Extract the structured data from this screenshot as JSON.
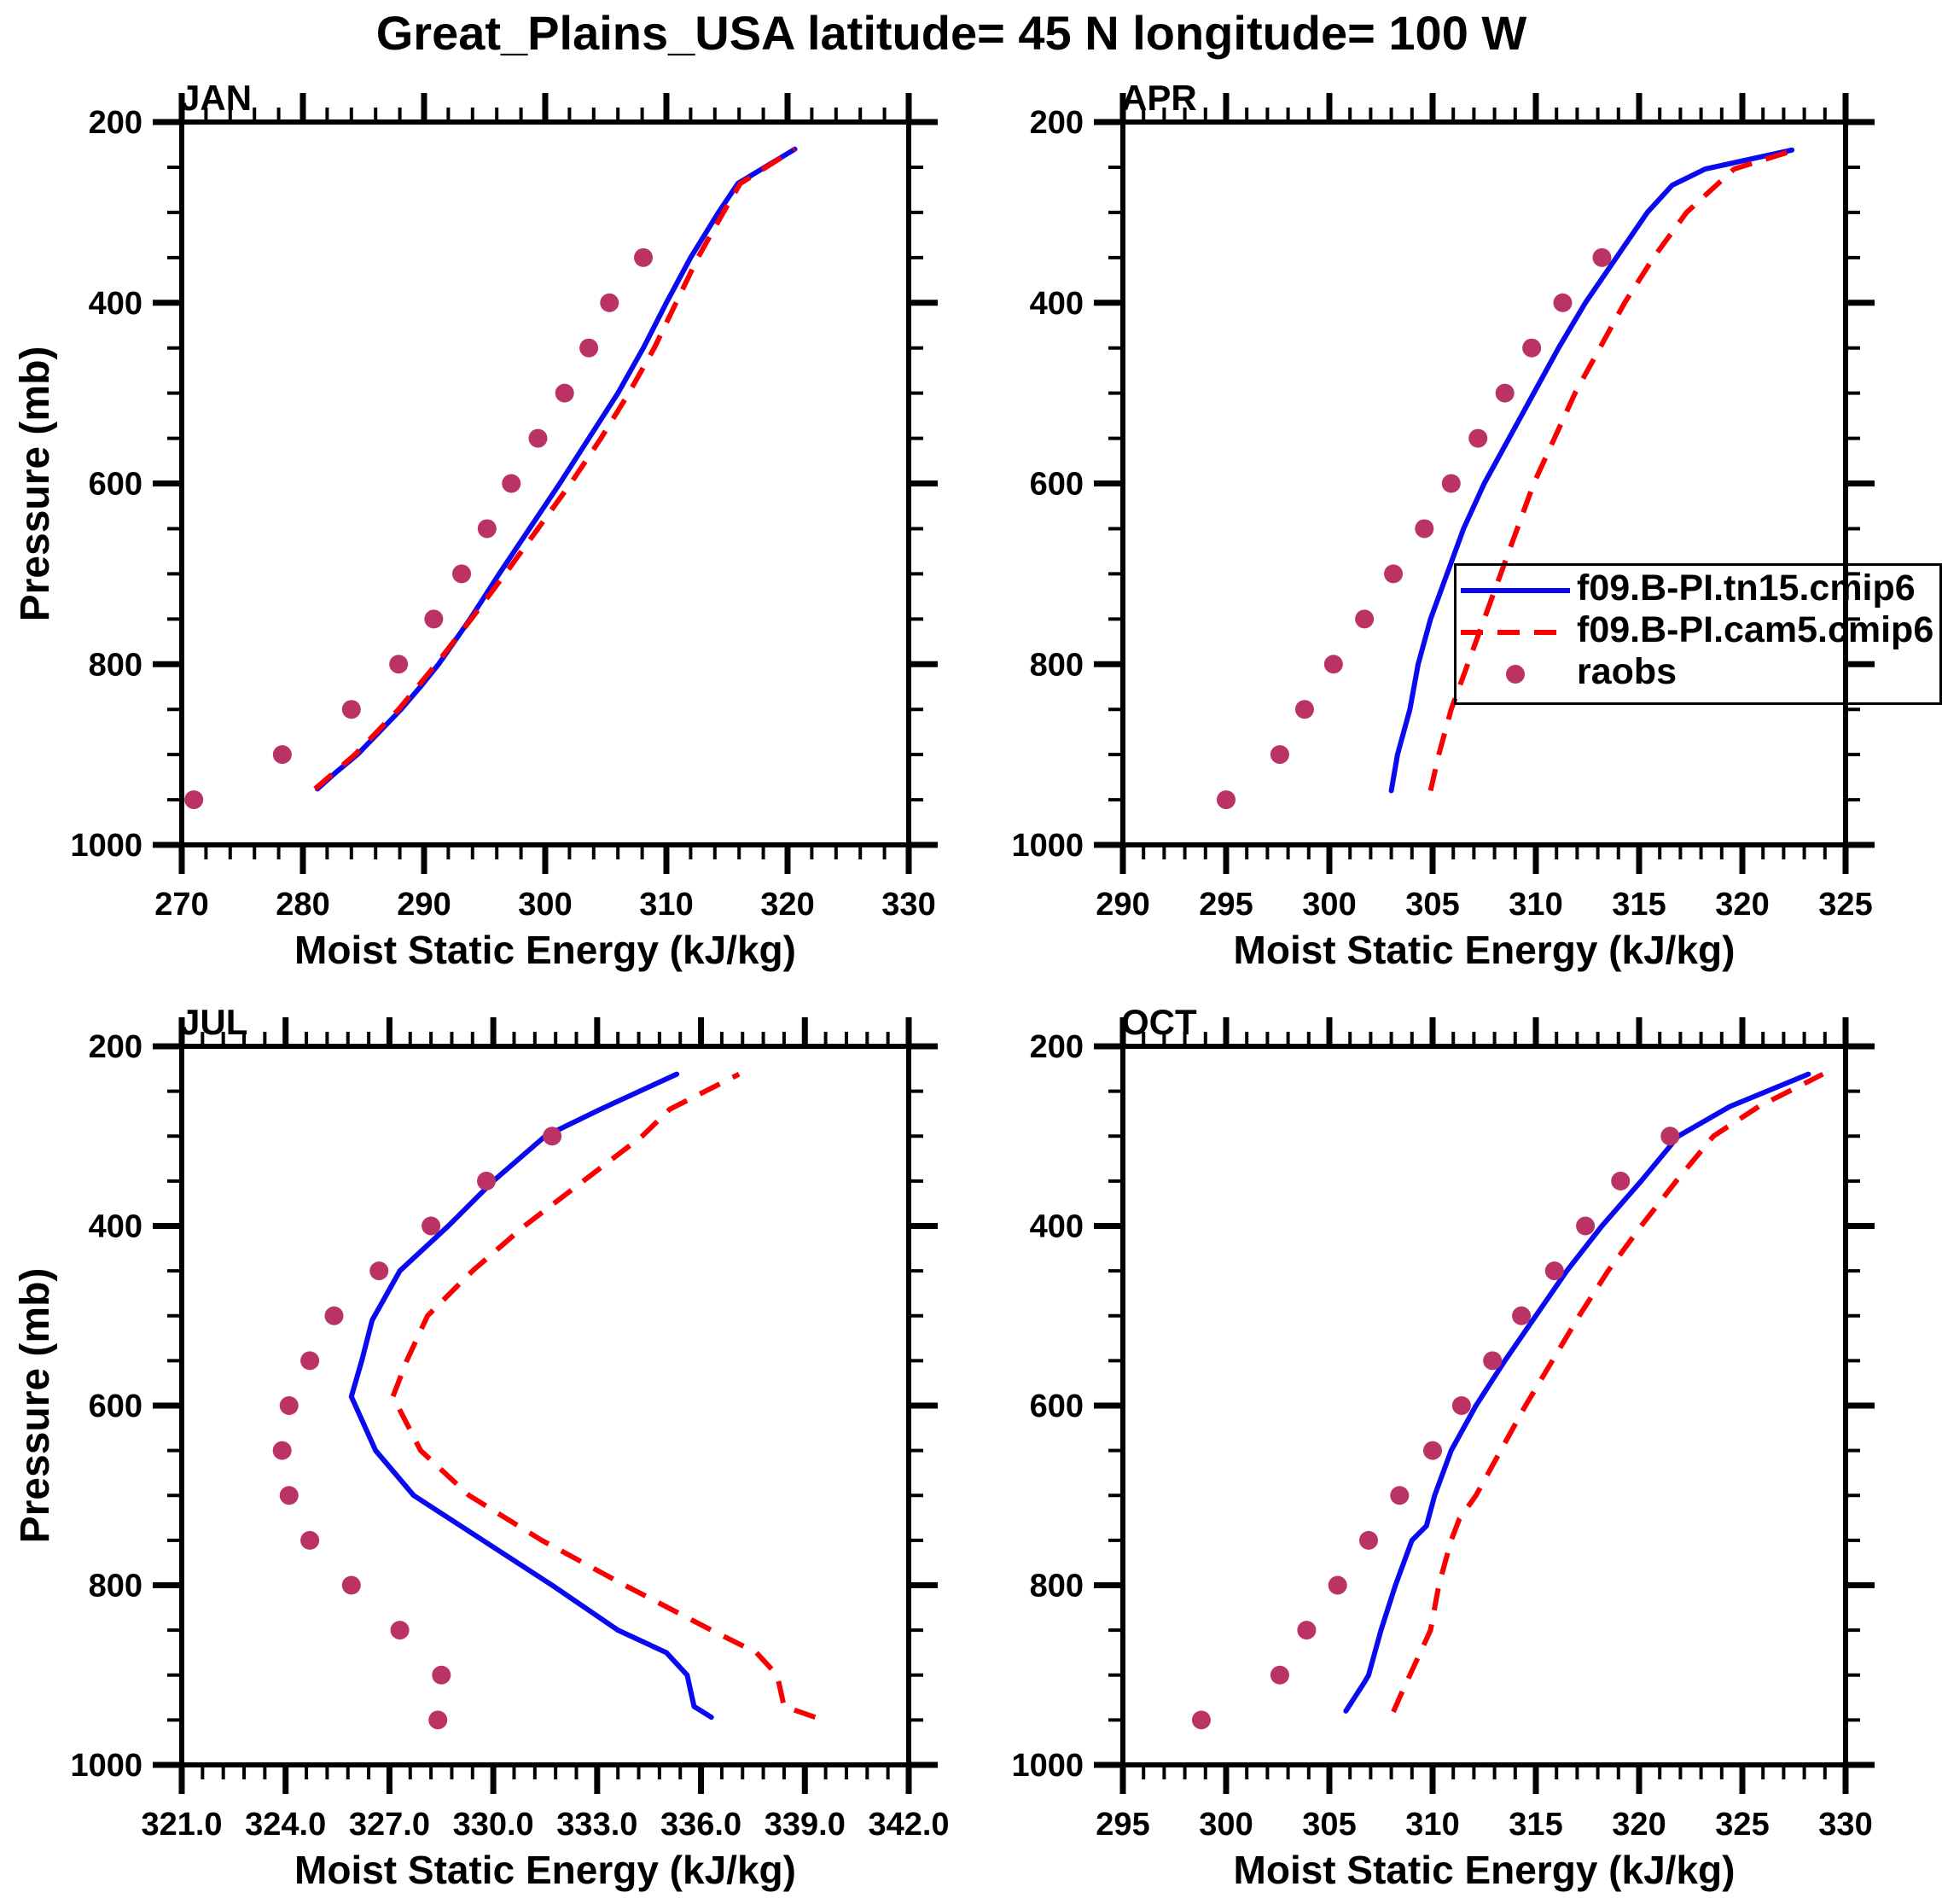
{
  "chart_data": {
    "type": "line",
    "title": "Great_Plains_USA  latitude= 45 N longitude= 100 W",
    "xlabel": "Moist Static Energy (kJ/kg)",
    "ylabel": "Pressure (mb)",
    "y_axis": {
      "lim": [
        200,
        1000
      ],
      "ticks": [
        200,
        400,
        600,
        800,
        1000
      ],
      "tick_labels": [
        "200",
        "400",
        "600",
        "800",
        "1000"
      ],
      "minor_step": 50,
      "inverted": true
    },
    "legend": {
      "position": "overlay-upper-right-clipped-at-image-edge",
      "entries": [
        {
          "label": "f09.B-PI.tn15.cmip6",
          "color": "#0a0af0",
          "style": "solid"
        },
        {
          "label": "f09.B-PI.cam5.cmip6",
          "color": "#fb0000",
          "style": "dashed"
        },
        {
          "label": "raobs",
          "color": "#ba3364",
          "style": "dot"
        }
      ]
    },
    "panels": [
      {
        "name": "JAN",
        "x_axis": {
          "lim": [
            270,
            330
          ],
          "ticks": [
            270,
            280,
            290,
            300,
            310,
            320,
            330
          ],
          "tick_labels": [
            "270",
            "280",
            "290",
            "300",
            "310",
            "320",
            "330"
          ],
          "minor_step": 2
        },
        "series": {
          "model1": [
            [
              281.2,
              938
            ],
            [
              282.7,
              920
            ],
            [
              284.5,
              900
            ],
            [
              286.3,
              875
            ],
            [
              288.1,
              850
            ],
            [
              289.7,
              825
            ],
            [
              291.2,
              800
            ],
            [
              293.8,
              750
            ],
            [
              296.2,
              700
            ],
            [
              298.7,
              650
            ],
            [
              301.2,
              600
            ],
            [
              303.6,
              550
            ],
            [
              306.0,
              500
            ],
            [
              308.1,
              450
            ],
            [
              310.0,
              400
            ],
            [
              312.0,
              350
            ],
            [
              314.3,
              300
            ],
            [
              315.9,
              268
            ],
            [
              320.6,
              230
            ]
          ],
          "model2": [
            [
              281.0,
              938
            ],
            [
              284.3,
              900
            ],
            [
              287.9,
              850
            ],
            [
              291.0,
              800
            ],
            [
              293.9,
              750
            ],
            [
              296.7,
              700
            ],
            [
              299.4,
              650
            ],
            [
              302.1,
              600
            ],
            [
              304.6,
              550
            ],
            [
              306.9,
              500
            ],
            [
              309.0,
              450
            ],
            [
              310.8,
              400
            ],
            [
              312.6,
              350
            ],
            [
              314.7,
              300
            ],
            [
              316.1,
              268
            ],
            [
              320.6,
              230
            ]
          ],
          "raobs": [
            [
              271.0,
              950
            ],
            [
              278.3,
              900
            ],
            [
              284.0,
              850
            ],
            [
              287.9,
              800
            ],
            [
              290.8,
              750
            ],
            [
              293.1,
              700
            ],
            [
              295.2,
              650
            ],
            [
              297.2,
              600
            ],
            [
              299.4,
              550
            ],
            [
              301.6,
              500
            ],
            [
              303.6,
              450
            ],
            [
              305.3,
              400
            ],
            [
              308.1,
              350
            ]
          ]
        }
      },
      {
        "name": "APR",
        "x_axis": {
          "lim": [
            290,
            325
          ],
          "ticks": [
            290,
            295,
            300,
            305,
            310,
            315,
            320,
            325
          ],
          "tick_labels": [
            "290",
            "295",
            "300",
            "305",
            "310",
            "315",
            "320",
            "325"
          ],
          "minor_step": 1
        },
        "series": {
          "model1": [
            [
              303.0,
              940
            ],
            [
              303.3,
              900
            ],
            [
              303.9,
              850
            ],
            [
              304.3,
              800
            ],
            [
              304.9,
              750
            ],
            [
              305.7,
              700
            ],
            [
              306.5,
              650
            ],
            [
              307.5,
              600
            ],
            [
              308.7,
              550
            ],
            [
              309.9,
              500
            ],
            [
              311.1,
              450
            ],
            [
              312.4,
              400
            ],
            [
              313.9,
              350
            ],
            [
              315.4,
              300
            ],
            [
              316.6,
              270
            ],
            [
              318.2,
              252
            ],
            [
              322.4,
              231
            ]
          ],
          "model2": [
            [
              304.9,
              940
            ],
            [
              305.3,
              900
            ],
            [
              305.9,
              850
            ],
            [
              306.7,
              800
            ],
            [
              307.5,
              750
            ],
            [
              308.3,
              700
            ],
            [
              309.1,
              650
            ],
            [
              309.9,
              600
            ],
            [
              310.9,
              550
            ],
            [
              311.9,
              500
            ],
            [
              313.1,
              450
            ],
            [
              314.3,
              400
            ],
            [
              315.7,
              350
            ],
            [
              317.3,
              300
            ],
            [
              319.6,
              252
            ],
            [
              322.4,
              232
            ]
          ],
          "raobs": [
            [
              295.0,
              950
            ],
            [
              297.6,
              900
            ],
            [
              298.8,
              850
            ],
            [
              300.2,
              800
            ],
            [
              301.7,
              750
            ],
            [
              303.1,
              700
            ],
            [
              304.6,
              650
            ],
            [
              305.9,
              600
            ],
            [
              307.2,
              550
            ],
            [
              308.5,
              500
            ],
            [
              309.8,
              450
            ],
            [
              311.3,
              400
            ],
            [
              313.2,
              350
            ]
          ]
        }
      },
      {
        "name": "JUL",
        "x_axis": {
          "lim": [
            321,
            342
          ],
          "ticks": [
            321,
            324,
            327,
            330,
            333,
            336,
            339,
            342
          ],
          "tick_labels": [
            "321.0",
            "324.0",
            "327.0",
            "330.0",
            "333.0",
            "336.0",
            "339.0",
            "342.0"
          ],
          "minor_step": 0.6
        },
        "series": {
          "model1": [
            [
              336.3,
              947
            ],
            [
              335.8,
              935
            ],
            [
              335.6,
              900
            ],
            [
              335.0,
              875
            ],
            [
              333.6,
              850
            ],
            [
              331.7,
              800
            ],
            [
              329.7,
              750
            ],
            [
              327.7,
              700
            ],
            [
              326.6,
              650
            ],
            [
              325.9,
              590
            ],
            [
              326.2,
              550
            ],
            [
              326.5,
              505
            ],
            [
              327.3,
              450
            ],
            [
              328.7,
              400
            ],
            [
              330.0,
              350
            ],
            [
              331.5,
              300
            ],
            [
              333.1,
              270
            ],
            [
              335.3,
              231
            ]
          ],
          "model2": [
            [
              339.3,
              947
            ],
            [
              338.4,
              935
            ],
            [
              338.2,
              900
            ],
            [
              337.6,
              875
            ],
            [
              336.3,
              850
            ],
            [
              333.8,
              800
            ],
            [
              331.4,
              750
            ],
            [
              329.3,
              700
            ],
            [
              327.9,
              650
            ],
            [
              327.1,
              590
            ],
            [
              327.5,
              550
            ],
            [
              328.1,
              500
            ],
            [
              329.4,
              450
            ],
            [
              330.9,
              400
            ],
            [
              332.6,
              350
            ],
            [
              334.3,
              300
            ],
            [
              335.1,
              270
            ],
            [
              337.1,
              231
            ]
          ],
          "raobs": [
            [
              328.4,
              950
            ],
            [
              328.5,
              900
            ],
            [
              327.3,
              850
            ],
            [
              325.9,
              800
            ],
            [
              324.7,
              750
            ],
            [
              324.1,
              700
            ],
            [
              323.9,
              650
            ],
            [
              324.1,
              600
            ],
            [
              324.7,
              550
            ],
            [
              325.4,
              500
            ],
            [
              326.7,
              450
            ],
            [
              328.2,
              400
            ],
            [
              329.8,
              350
            ],
            [
              331.7,
              300
            ]
          ]
        }
      },
      {
        "name": "OCT",
        "x_axis": {
          "lim": [
            295,
            330
          ],
          "ticks": [
            295,
            300,
            305,
            310,
            315,
            320,
            325,
            330
          ],
          "tick_labels": [
            "295",
            "300",
            "305",
            "310",
            "315",
            "320",
            "325",
            "330"
          ],
          "minor_step": 1
        },
        "series": {
          "model1": [
            [
              305.8,
              940
            ],
            [
              306.7,
              908
            ],
            [
              306.9,
              900
            ],
            [
              307.5,
              850
            ],
            [
              308.2,
              800
            ],
            [
              309.0,
              750
            ],
            [
              309.7,
              734
            ],
            [
              310.1,
              700
            ],
            [
              310.9,
              650
            ],
            [
              312.1,
              600
            ],
            [
              313.5,
              550
            ],
            [
              315.0,
              500
            ],
            [
              316.5,
              450
            ],
            [
              318.2,
              400
            ],
            [
              320.1,
              350
            ],
            [
              321.9,
              300
            ],
            [
              324.4,
              267
            ],
            [
              328.2,
              231
            ]
          ],
          "model2": [
            [
              308.1,
              941
            ],
            [
              308.4,
              925
            ],
            [
              308.9,
              900
            ],
            [
              309.9,
              850
            ],
            [
              310.3,
              800
            ],
            [
              310.9,
              750
            ],
            [
              311.3,
              726
            ],
            [
              312.1,
              700
            ],
            [
              313.3,
              650
            ],
            [
              314.5,
              600
            ],
            [
              315.8,
              550
            ],
            [
              317.1,
              500
            ],
            [
              318.5,
              450
            ],
            [
              320.1,
              400
            ],
            [
              321.8,
              350
            ],
            [
              323.6,
              300
            ],
            [
              325.8,
              267
            ],
            [
              328.9,
              231
            ]
          ],
          "raobs": [
            [
              298.8,
              950
            ],
            [
              302.6,
              900
            ],
            [
              303.9,
              850
            ],
            [
              305.4,
              800
            ],
            [
              306.9,
              750
            ],
            [
              308.4,
              700
            ],
            [
              310.0,
              650
            ],
            [
              311.4,
              600
            ],
            [
              312.9,
              550
            ],
            [
              314.3,
              500
            ],
            [
              315.9,
              450
            ],
            [
              317.4,
              400
            ],
            [
              319.1,
              350
            ],
            [
              321.5,
              300
            ]
          ]
        }
      }
    ]
  }
}
